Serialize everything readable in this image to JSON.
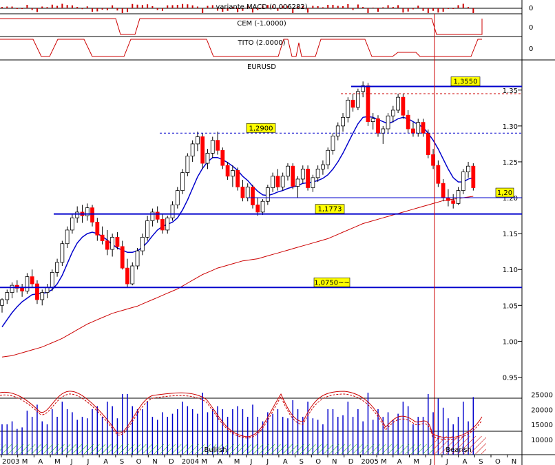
{
  "chart_data": {
    "type": "candlestick",
    "instrument": "EURUSD",
    "colors": {
      "up": "#ffffff",
      "down": "#ff0000",
      "wick": "#000000",
      "ma_short": "#0000cc",
      "ma_long": "#cc0000",
      "level": "#0000cc",
      "label_bg": "#ffff00",
      "bullish_hatch": "#00aa00",
      "bearish_hatch": "#cc0000",
      "vline": "#cc0000"
    },
    "indicator_panels": [
      {
        "label": "variante MACD (0.006282)",
        "zero_label": "0"
      },
      {
        "label": "CEM (-1.0000)",
        "zero_label": "0"
      },
      {
        "label": "TITO (2.0000)",
        "zero_label": "0"
      }
    ],
    "price_axis": {
      "range": [
        0.938,
        1.392
      ],
      "ticks": [
        "1.35",
        "1.30",
        "1.25",
        "1.20",
        "1.15",
        "1.10",
        "1.05",
        "1.00",
        "0.95"
      ],
      "tick_values": [
        1.35,
        1.3,
        1.25,
        1.2,
        1.15,
        1.1,
        1.05,
        1.0,
        0.95
      ]
    },
    "x_axis": {
      "labels": [
        "2003",
        "M",
        "A",
        "M",
        "J",
        "J",
        "A",
        "S",
        "O",
        "N",
        "D",
        "2004",
        "M",
        "A",
        "M",
        "J",
        "J",
        "A",
        "S",
        "O",
        "N",
        "D",
        "2005",
        "M",
        "A",
        "M",
        "J",
        "J",
        "A",
        "S",
        "O",
        "N"
      ]
    },
    "levels": [
      {
        "value": 1.355,
        "label": "1,3550",
        "style": "solid"
      },
      {
        "value": 1.345,
        "label": "",
        "style": "dashed-red"
      },
      {
        "value": 1.29,
        "label": "1,2900",
        "style": "dashed"
      },
      {
        "value": 1.2,
        "label": "1,20",
        "style": "thin"
      },
      {
        "value": 1.1773,
        "label": "1,1773",
        "style": "solid"
      },
      {
        "value": 1.075,
        "label": "1,0750~~",
        "style": "solid"
      }
    ],
    "volume_axis": {
      "ticks": [
        "25000",
        "20000",
        "15000",
        "10000"
      ],
      "tick_values": [
        25000,
        20000,
        15000,
        10000
      ]
    },
    "zones": [
      {
        "label": "Bullish"
      },
      {
        "label": "Bearish"
      }
    ],
    "candles": [
      [
        1.05,
        1.06,
        1.04,
        1.058
      ],
      [
        1.058,
        1.072,
        1.052,
        1.068
      ],
      [
        1.068,
        1.082,
        1.06,
        1.078
      ],
      [
        1.078,
        1.085,
        1.068,
        1.074
      ],
      [
        1.074,
        1.08,
        1.062,
        1.07
      ],
      [
        1.07,
        1.095,
        1.066,
        1.09
      ],
      [
        1.09,
        1.1,
        1.075,
        1.08
      ],
      [
        1.08,
        1.085,
        1.052,
        1.058
      ],
      [
        1.058,
        1.072,
        1.05,
        1.068
      ],
      [
        1.068,
        1.08,
        1.06,
        1.075
      ],
      [
        1.075,
        1.1,
        1.07,
        1.096
      ],
      [
        1.096,
        1.115,
        1.09,
        1.11
      ],
      [
        1.11,
        1.14,
        1.105,
        1.136
      ],
      [
        1.136,
        1.16,
        1.13,
        1.155
      ],
      [
        1.155,
        1.178,
        1.15,
        1.172
      ],
      [
        1.172,
        1.188,
        1.165,
        1.18
      ],
      [
        1.18,
        1.19,
        1.165,
        1.175
      ],
      [
        1.175,
        1.192,
        1.168,
        1.186
      ],
      [
        1.186,
        1.19,
        1.16,
        1.166
      ],
      [
        1.166,
        1.172,
        1.14,
        1.148
      ],
      [
        1.148,
        1.16,
        1.135,
        1.14
      ],
      [
        1.14,
        1.155,
        1.12,
        1.128
      ],
      [
        1.128,
        1.15,
        1.118,
        1.145
      ],
      [
        1.145,
        1.152,
        1.128,
        1.132
      ],
      [
        1.132,
        1.14,
        1.1,
        1.102
      ],
      [
        1.102,
        1.115,
        1.075,
        1.08
      ],
      [
        1.08,
        1.11,
        1.078,
        1.105
      ],
      [
        1.105,
        1.13,
        1.1,
        1.126
      ],
      [
        1.126,
        1.15,
        1.12,
        1.145
      ],
      [
        1.145,
        1.175,
        1.14,
        1.168
      ],
      [
        1.168,
        1.185,
        1.16,
        1.18
      ],
      [
        1.18,
        1.188,
        1.165,
        1.17
      ],
      [
        1.17,
        1.178,
        1.15,
        1.155
      ],
      [
        1.155,
        1.175,
        1.15,
        1.172
      ],
      [
        1.172,
        1.195,
        1.168,
        1.19
      ],
      [
        1.19,
        1.215,
        1.185,
        1.21
      ],
      [
        1.21,
        1.24,
        1.205,
        1.235
      ],
      [
        1.235,
        1.262,
        1.23,
        1.258
      ],
      [
        1.258,
        1.28,
        1.25,
        1.275
      ],
      [
        1.275,
        1.292,
        1.265,
        1.285
      ],
      [
        1.285,
        1.29,
        1.24,
        1.248
      ],
      [
        1.248,
        1.268,
        1.24,
        1.262
      ],
      [
        1.262,
        1.285,
        1.255,
        1.28
      ],
      [
        1.28,
        1.292,
        1.26,
        1.266
      ],
      [
        1.266,
        1.27,
        1.24,
        1.245
      ],
      [
        1.245,
        1.25,
        1.225,
        1.23
      ],
      [
        1.23,
        1.245,
        1.215,
        1.238
      ],
      [
        1.238,
        1.242,
        1.21,
        1.215
      ],
      [
        1.215,
        1.225,
        1.195,
        1.2
      ],
      [
        1.2,
        1.22,
        1.195,
        1.215
      ],
      [
        1.215,
        1.218,
        1.185,
        1.19
      ],
      [
        1.19,
        1.2,
        1.175,
        1.18
      ],
      [
        1.18,
        1.198,
        1.176,
        1.195
      ],
      [
        1.195,
        1.218,
        1.19,
        1.214
      ],
      [
        1.214,
        1.235,
        1.208,
        1.23
      ],
      [
        1.23,
        1.24,
        1.21,
        1.215
      ],
      [
        1.215,
        1.235,
        1.21,
        1.23
      ],
      [
        1.23,
        1.248,
        1.224,
        1.244
      ],
      [
        1.244,
        1.248,
        1.212,
        1.216
      ],
      [
        1.216,
        1.23,
        1.2,
        1.226
      ],
      [
        1.226,
        1.245,
        1.22,
        1.24
      ],
      [
        1.24,
        1.245,
        1.21,
        1.214
      ],
      [
        1.214,
        1.232,
        1.208,
        1.228
      ],
      [
        1.228,
        1.245,
        1.222,
        1.24
      ],
      [
        1.24,
        1.252,
        1.232,
        1.246
      ],
      [
        1.246,
        1.27,
        1.24,
        1.266
      ],
      [
        1.266,
        1.29,
        1.26,
        1.286
      ],
      [
        1.286,
        1.305,
        1.28,
        1.3
      ],
      [
        1.3,
        1.318,
        1.292,
        1.312
      ],
      [
        1.312,
        1.34,
        1.305,
        1.336
      ],
      [
        1.336,
        1.345,
        1.32,
        1.326
      ],
      [
        1.326,
        1.352,
        1.322,
        1.348
      ],
      [
        1.348,
        1.362,
        1.34,
        1.356
      ],
      [
        1.356,
        1.36,
        1.3,
        1.306
      ],
      [
        1.306,
        1.318,
        1.295,
        1.31
      ],
      [
        1.31,
        1.315,
        1.285,
        1.29
      ],
      [
        1.29,
        1.3,
        1.275,
        1.296
      ],
      [
        1.296,
        1.318,
        1.29,
        1.314
      ],
      [
        1.314,
        1.328,
        1.305,
        1.322
      ],
      [
        1.322,
        1.345,
        1.318,
        1.34
      ],
      [
        1.34,
        1.345,
        1.31,
        1.315
      ],
      [
        1.315,
        1.322,
        1.29,
        1.296
      ],
      [
        1.296,
        1.305,
        1.285,
        1.29
      ],
      [
        1.29,
        1.31,
        1.285,
        1.305
      ],
      [
        1.305,
        1.31,
        1.285,
        1.29
      ],
      [
        1.29,
        1.295,
        1.255,
        1.26
      ],
      [
        1.26,
        1.268,
        1.24,
        1.245
      ],
      [
        1.245,
        1.252,
        1.215,
        1.22
      ],
      [
        1.22,
        1.226,
        1.195,
        1.2
      ],
      [
        1.2,
        1.212,
        1.188,
        1.196
      ],
      [
        1.196,
        1.205,
        1.185,
        1.192
      ],
      [
        1.192,
        1.215,
        1.19,
        1.21
      ],
      [
        1.21,
        1.24,
        1.205,
        1.236
      ],
      [
        1.236,
        1.25,
        1.228,
        1.244
      ],
      [
        1.244,
        1.248,
        1.21,
        1.214
      ]
    ],
    "ma_short": [
      1.02,
      1.03,
      1.04,
      1.048,
      1.055,
      1.06,
      1.065,
      1.066,
      1.067,
      1.068,
      1.072,
      1.08,
      1.092,
      1.108,
      1.124,
      1.137,
      1.145,
      1.15,
      1.152,
      1.15,
      1.146,
      1.141,
      1.135,
      1.13,
      1.127,
      1.124,
      1.124,
      1.126,
      1.131,
      1.138,
      1.147,
      1.155,
      1.16,
      1.163,
      1.166,
      1.172,
      1.183,
      1.197,
      1.213,
      1.229,
      1.241,
      1.25,
      1.256,
      1.256,
      1.253,
      1.249,
      1.244,
      1.238,
      1.23,
      1.224,
      1.216,
      1.209,
      1.204,
      1.203,
      1.205,
      1.208,
      1.21,
      1.213,
      1.215,
      1.217,
      1.22,
      1.221,
      1.222,
      1.224,
      1.227,
      1.232,
      1.24,
      1.25,
      1.262,
      1.276,
      1.29,
      1.303,
      1.312,
      1.313,
      1.312,
      1.309,
      1.306,
      1.303,
      1.306,
      1.31,
      1.312,
      1.31,
      1.306,
      1.302,
      1.298,
      1.29,
      1.28,
      1.268,
      1.254,
      1.24,
      1.228,
      1.222,
      1.222,
      1.226,
      1.228
    ],
    "ma_long": [
      0.978,
      0.979,
      0.98,
      0.982,
      0.984,
      0.986,
      0.988,
      0.99,
      0.992,
      0.995,
      0.998,
      1.001,
      1.004,
      1.008,
      1.012,
      1.016,
      1.02,
      1.024,
      1.027,
      1.03,
      1.033,
      1.036,
      1.039,
      1.041,
      1.043,
      1.045,
      1.047,
      1.049,
      1.052,
      1.055,
      1.058,
      1.061,
      1.064,
      1.067,
      1.07,
      1.073,
      1.077,
      1.081,
      1.085,
      1.089,
      1.093,
      1.096,
      1.099,
      1.102,
      1.104,
      1.106,
      1.108,
      1.11,
      1.112,
      1.113,
      1.114,
      1.115,
      1.117,
      1.119,
      1.121,
      1.123,
      1.125,
      1.127,
      1.129,
      1.131,
      1.133,
      1.135,
      1.137,
      1.139,
      1.141,
      1.143,
      1.146,
      1.149,
      1.152,
      1.155,
      1.158,
      1.161,
      1.164,
      1.166,
      1.168,
      1.17,
      1.172,
      1.174,
      1.176,
      1.178,
      1.18,
      1.182,
      1.184,
      1.186,
      1.188,
      1.19,
      1.192,
      1.194,
      1.196,
      1.197,
      1.198,
      1.199,
      1.2,
      1.201,
      1.202
    ]
  }
}
